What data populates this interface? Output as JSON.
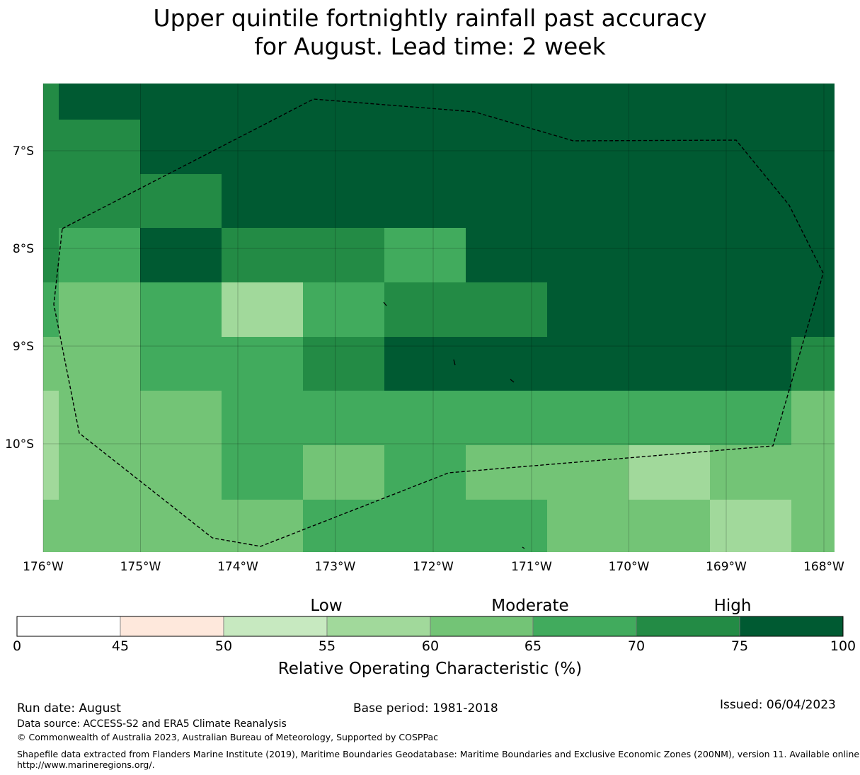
{
  "title_line1": "Upper quintile fortnightly rainfall past accuracy",
  "title_line2": "for August. Lead time: 2 week",
  "map": {
    "lon_labels": [
      "176°W",
      "175°W",
      "174°W",
      "173°W",
      "172°W",
      "171°W",
      "170°W",
      "169°W",
      "168°W"
    ],
    "lat_labels": [
      "7°S",
      "8°S",
      "9°S",
      "10°S"
    ],
    "lon_range": [
      -176,
      -168
    ],
    "lat_range": [
      -11.1,
      -6.3
    ],
    "grid": true,
    "cells_note": "",
    "palette": {
      "60-65": "#73c476",
      "65-70": "#41ab5d",
      "70-75": "#238b45",
      "75-100": "#005a32",
      "55-60": "#a1d99b",
      "50-55": "#c7e9c0",
      "45-50": "#fee8dc",
      "0-45": "#ffffff"
    }
  },
  "colorbar": {
    "category_labels": [
      "Low",
      "Moderate",
      "High"
    ],
    "ticks": [
      "0",
      "45",
      "50",
      "55",
      "60",
      "65",
      "70",
      "75",
      "100"
    ],
    "colors": [
      "#ffffff",
      "#fee8dc",
      "#c7e9c0",
      "#a1d99b",
      "#73c476",
      "#41ab5d",
      "#238b45",
      "#005a32"
    ],
    "title": "Relative Operating Characteristic (%)"
  },
  "footer": {
    "run_date": "Run date: August",
    "base_period": "Base period: 1981-2018",
    "issued": "Issued: 06/04/2023",
    "data_source": "Data source: ACCESS-S2 and ERA5 Climate Reanalysis",
    "copyright": "© Commonwealth of Australia 2023, Australian Bureau of Meteorology, Supported by COSPPac",
    "shapefile_line1": "Shapefile data extracted from Flanders Marine Institute (2019), Maritime Boundaries Geodatabase: Maritime Boundaries and Exclusive Economic Zones (200NM), version 11. Available online at",
    "shapefile_line2": "http://www.marineregions.org/."
  }
}
